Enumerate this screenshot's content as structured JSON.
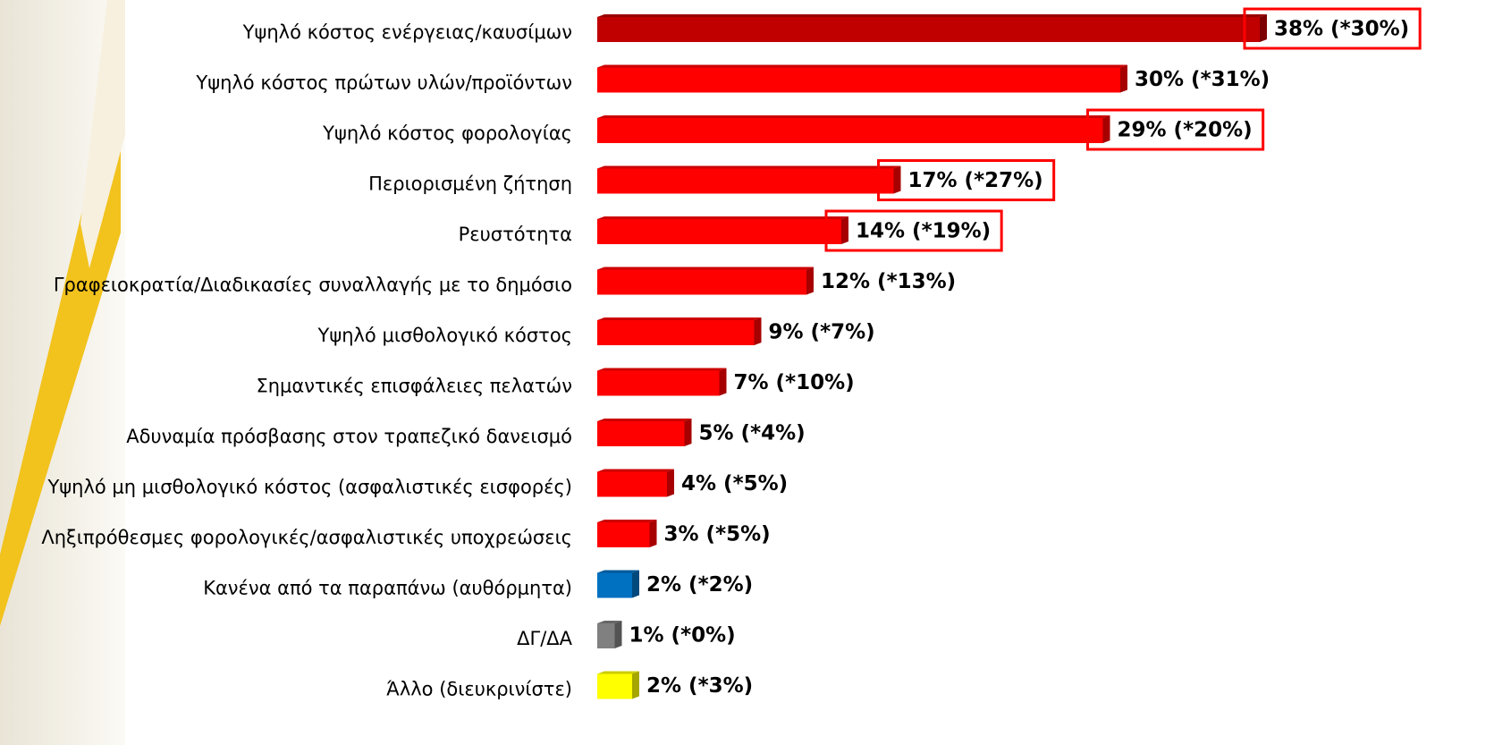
{
  "chart_data": {
    "type": "bar",
    "orientation": "horizontal",
    "categories": [
      "Υψηλό κόστος ενέργειας/καυσίμων",
      "Υψηλό κόστος πρώτων υλών/προϊόντων",
      "Υψηλό κόστος φορολογίας",
      "Περιορισμένη ζήτηση",
      "Ρευστότητα",
      "Γραφειοκρατία/Διαδικασίες συναλλαγής με το δημόσιο",
      "Υψηλό μισθολογικό κόστος",
      "Σημαντικές επισφάλειες πελατών",
      "Αδυναμία πρόσβασης στον τραπεζικό δανεισμό",
      "Υψηλό μη μισθολογικό κόστος (ασφαλιστικές εισφορές)",
      "Ληξιπρόθεσμες φορολογικές/ασφαλιστικές υποχρεώσεις",
      "Κανένα από τα παραπάνω (αυθόρμητα)",
      "ΔΓ/ΔΑ",
      "Άλλο (διευκρινίστε)"
    ],
    "values": [
      38,
      30,
      29,
      17,
      14,
      12,
      9,
      7,
      5,
      4,
      3,
      2,
      1,
      2
    ],
    "value_labels": [
      "38% (*30%)",
      "30% (*31%)",
      "29% (*20%)",
      "17% (*27%)",
      "14% (*19%)",
      "12% (*13%)",
      "9% (*7%)",
      "7% (*10%)",
      "5% (*4%)",
      "4% (*5%)",
      "3% (*5%)",
      "2% (*2%)",
      "1% (*0%)",
      "2% (*3%)"
    ],
    "colors": [
      "#c00000",
      "#ff0000",
      "#ff0000",
      "#ff0000",
      "#ff0000",
      "#ff0000",
      "#ff0000",
      "#ff0000",
      "#ff0000",
      "#ff0000",
      "#ff0000",
      "#0070c0",
      "#808080",
      "#ffff00"
    ],
    "highlight": [
      true,
      false,
      true,
      true,
      true,
      false,
      false,
      false,
      false,
      false,
      false,
      false,
      false,
      false
    ],
    "highlight_color": "#ff0000"
  }
}
